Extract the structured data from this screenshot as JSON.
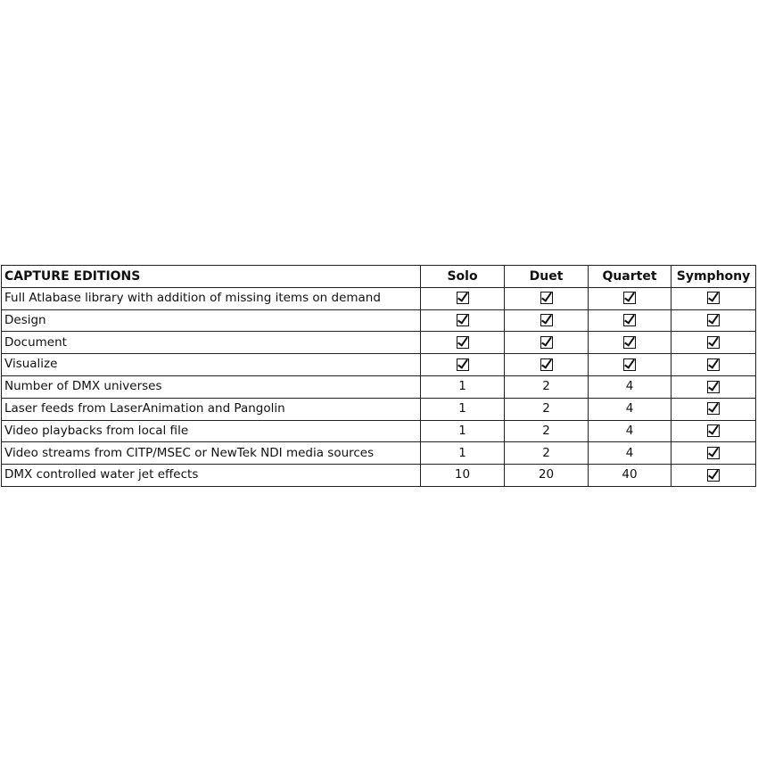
{
  "table": {
    "header": [
      "CAPTURE EDITIONS",
      "Solo",
      "Duet",
      "Quartet",
      "Symphony"
    ],
    "rows": [
      {
        "feature": "Full Atlabase library with addition of missing items on demand",
        "values": [
          "check",
          "check",
          "check",
          "check"
        ]
      },
      {
        "feature": "Design",
        "values": [
          "check",
          "check",
          "check",
          "check"
        ]
      },
      {
        "feature": "Document",
        "values": [
          "check",
          "check",
          "check",
          "check"
        ]
      },
      {
        "feature": "Visualize",
        "values": [
          "check",
          "check",
          "check",
          "check"
        ]
      },
      {
        "feature": "Number of DMX universes",
        "values": [
          "1",
          "2",
          "4",
          "check"
        ]
      },
      {
        "feature": "Laser feeds from LaserAnimation and Pangolin",
        "values": [
          "1",
          "2",
          "4",
          "check"
        ]
      },
      {
        "feature": "Video playbacks from local file",
        "values": [
          "1",
          "2",
          "4",
          "check"
        ]
      },
      {
        "feature": "Video streams from CITP/MSEC or NewTek NDI media sources",
        "values": [
          "1",
          "2",
          "4",
          "check"
        ]
      },
      {
        "feature": "DMX controlled water jet effects",
        "values": [
          "10",
          "20",
          "40",
          "check"
        ]
      }
    ]
  }
}
